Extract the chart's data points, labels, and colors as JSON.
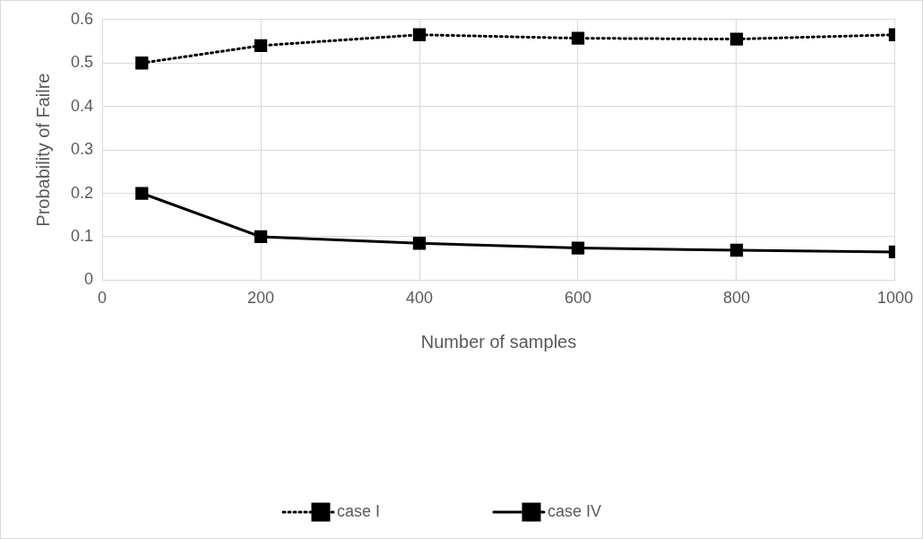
{
  "chart_data": {
    "type": "line",
    "xlabel": "Number of samples",
    "ylabel": "Probability of Failre",
    "x": [
      50,
      200,
      400,
      600,
      800,
      1000
    ],
    "series": [
      {
        "name": "case I",
        "color": "#000000",
        "line_style": "dotted",
        "values": [
          0.5,
          0.54,
          0.565,
          0.557,
          0.555,
          0.565
        ]
      },
      {
        "name": "case IV",
        "color": "#000000",
        "line_style": "solid",
        "values": [
          0.2,
          0.1,
          0.085,
          0.074,
          0.069,
          0.065
        ]
      }
    ],
    "xlim": [
      0,
      1000
    ],
    "xticks": [
      0,
      200,
      400,
      600,
      800,
      1000
    ],
    "ylim": [
      0,
      0.6
    ],
    "yticks": [
      0,
      0.1,
      0.2,
      0.3,
      0.4,
      0.5,
      0.6
    ],
    "grid": true,
    "legend": "bottom",
    "marker": "square"
  }
}
